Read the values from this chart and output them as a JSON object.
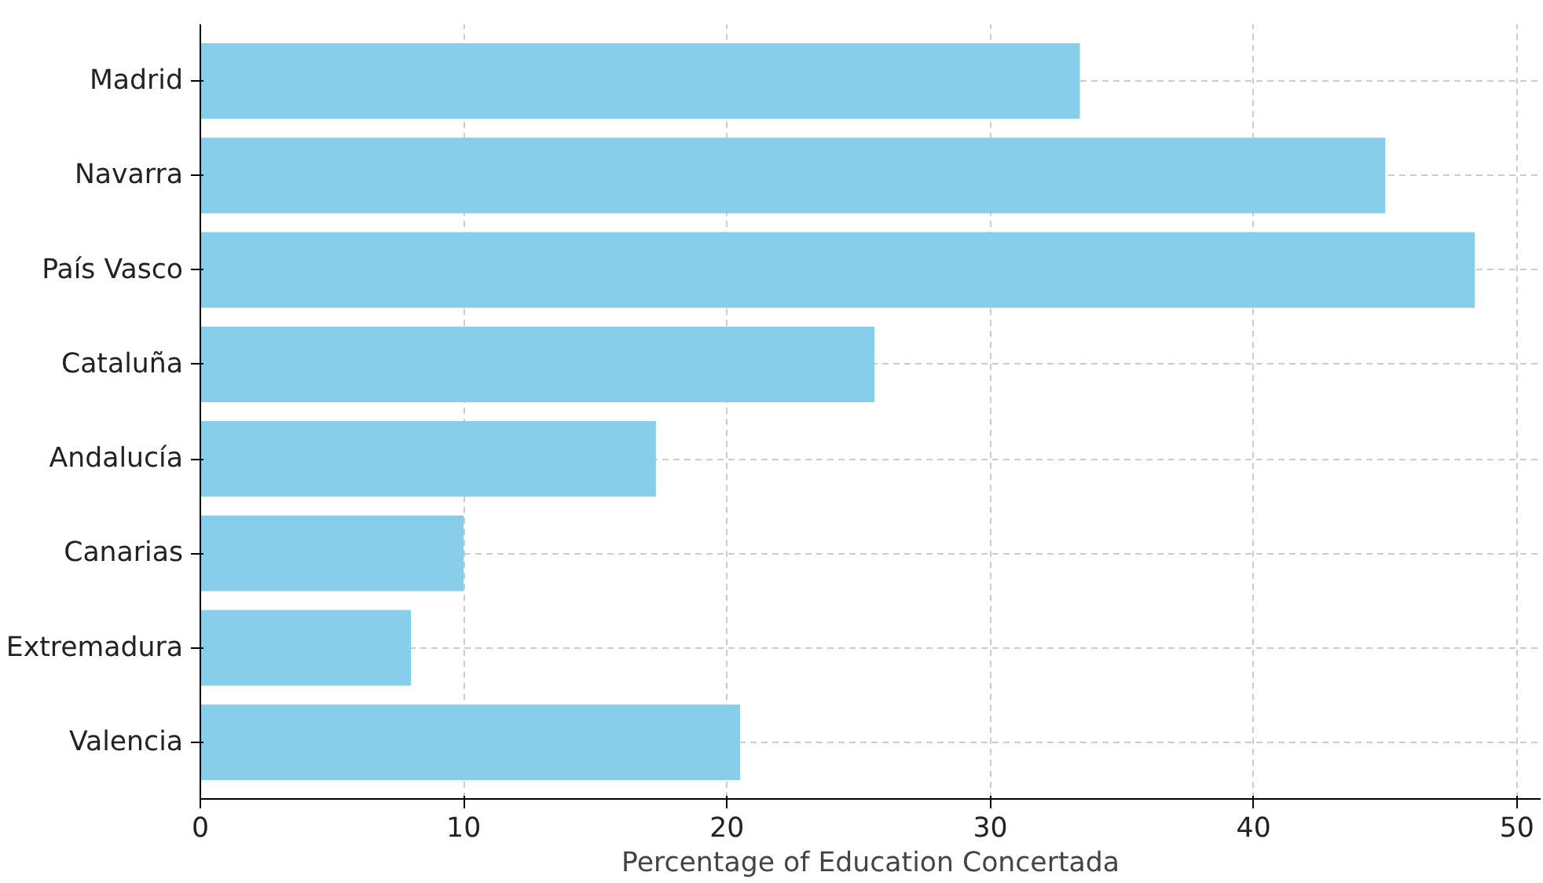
{
  "chart_data": {
    "type": "bar",
    "orientation": "horizontal",
    "xlabel": "Percentage of Education Concertada",
    "categories": [
      "Madrid",
      "Navarra",
      "País Vasco",
      "Cataluña",
      "Andalucía",
      "Canarias",
      "Extremadura",
      "Valencia"
    ],
    "values": [
      33.4,
      45.0,
      48.4,
      25.6,
      17.3,
      10.0,
      8.0,
      20.5
    ],
    "color": "#87ceeb",
    "xlim": [
      0,
      50.9
    ],
    "xticks": [
      0,
      10,
      20,
      30,
      40,
      50
    ],
    "grid": true
  }
}
